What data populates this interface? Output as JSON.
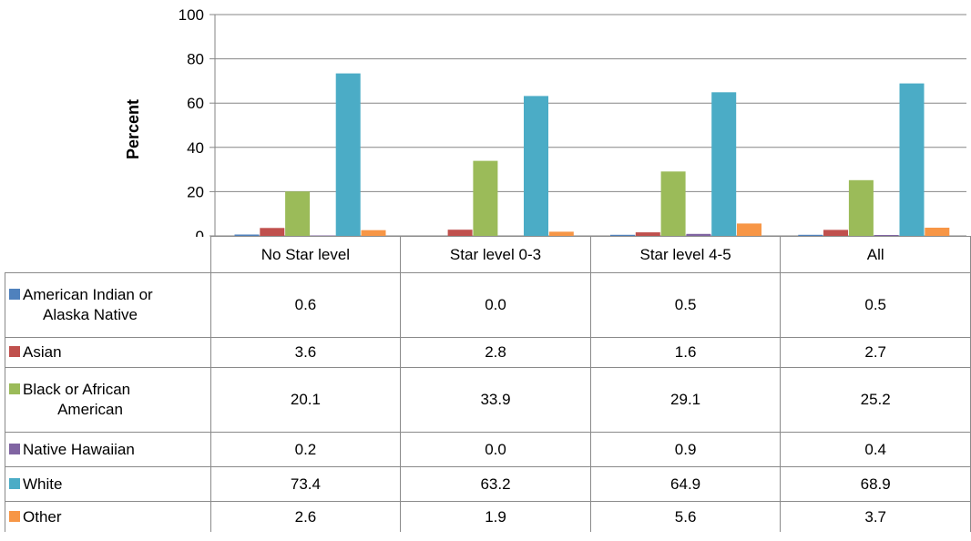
{
  "chart_data": {
    "type": "bar",
    "title": "",
    "xlabel": "",
    "ylabel": "Percent",
    "ylim": [
      0,
      100
    ],
    "yticks": [
      0,
      20,
      40,
      60,
      80,
      100
    ],
    "grid": true,
    "legend": "table-left",
    "categories": [
      "No Star level",
      "Star level 0-3",
      "Star level 4-5",
      "All"
    ],
    "series": [
      {
        "name": "American Indian or Alaska Native",
        "name_lines": [
          "American Indian or",
          "Alaska Native"
        ],
        "color": "#4F81BD",
        "values": [
          0.6,
          0.0,
          0.5,
          0.5
        ],
        "labels": [
          "0.6",
          "0.0",
          "0.5",
          "0.5"
        ]
      },
      {
        "name": "Asian",
        "name_lines": [
          "Asian"
        ],
        "color": "#C0504D",
        "values": [
          3.6,
          2.8,
          1.6,
          2.7
        ],
        "labels": [
          "3.6",
          "2.8",
          "1.6",
          "2.7"
        ]
      },
      {
        "name": "Black or African American",
        "name_lines": [
          "Black or African",
          "American"
        ],
        "color": "#9BBB59",
        "values": [
          20.1,
          33.9,
          29.1,
          25.2
        ],
        "labels": [
          "20.1",
          "33.9",
          "29.1",
          "25.2"
        ]
      },
      {
        "name": "Native Hawaiian",
        "name_lines": [
          "Native Hawaiian"
        ],
        "color": "#8064A2",
        "values": [
          0.2,
          0.0,
          0.9,
          0.4
        ],
        "labels": [
          "0.2",
          "0.0",
          "0.9",
          "0.4"
        ]
      },
      {
        "name": "White",
        "name_lines": [
          "White"
        ],
        "color": "#4BACC6",
        "values": [
          73.4,
          63.2,
          64.9,
          68.9
        ],
        "labels": [
          "73.4",
          "63.2",
          "64.9",
          "68.9"
        ]
      },
      {
        "name": "Other",
        "name_lines": [
          "Other"
        ],
        "color": "#F79646",
        "values": [
          2.6,
          1.9,
          5.6,
          3.7
        ],
        "labels": [
          "2.6",
          "1.9",
          "5.6",
          "3.7"
        ]
      }
    ]
  }
}
